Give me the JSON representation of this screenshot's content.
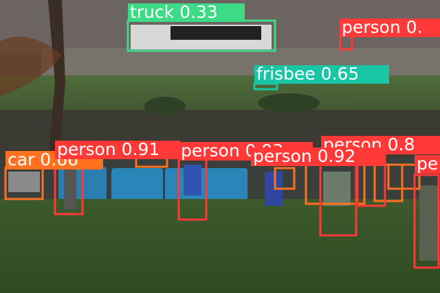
{
  "detections": [
    {
      "label": "truck 0.33"
    },
    {
      "label": "person 0."
    },
    {
      "label": "frisbee 0.65"
    },
    {
      "label": "car 0.66"
    },
    {
      "label": "person 0.91"
    },
    {
      "label": "person 0.93"
    },
    {
      "label": "person 0.8"
    },
    {
      "label": "person 0.92"
    },
    {
      "label": "pe"
    }
  ]
}
